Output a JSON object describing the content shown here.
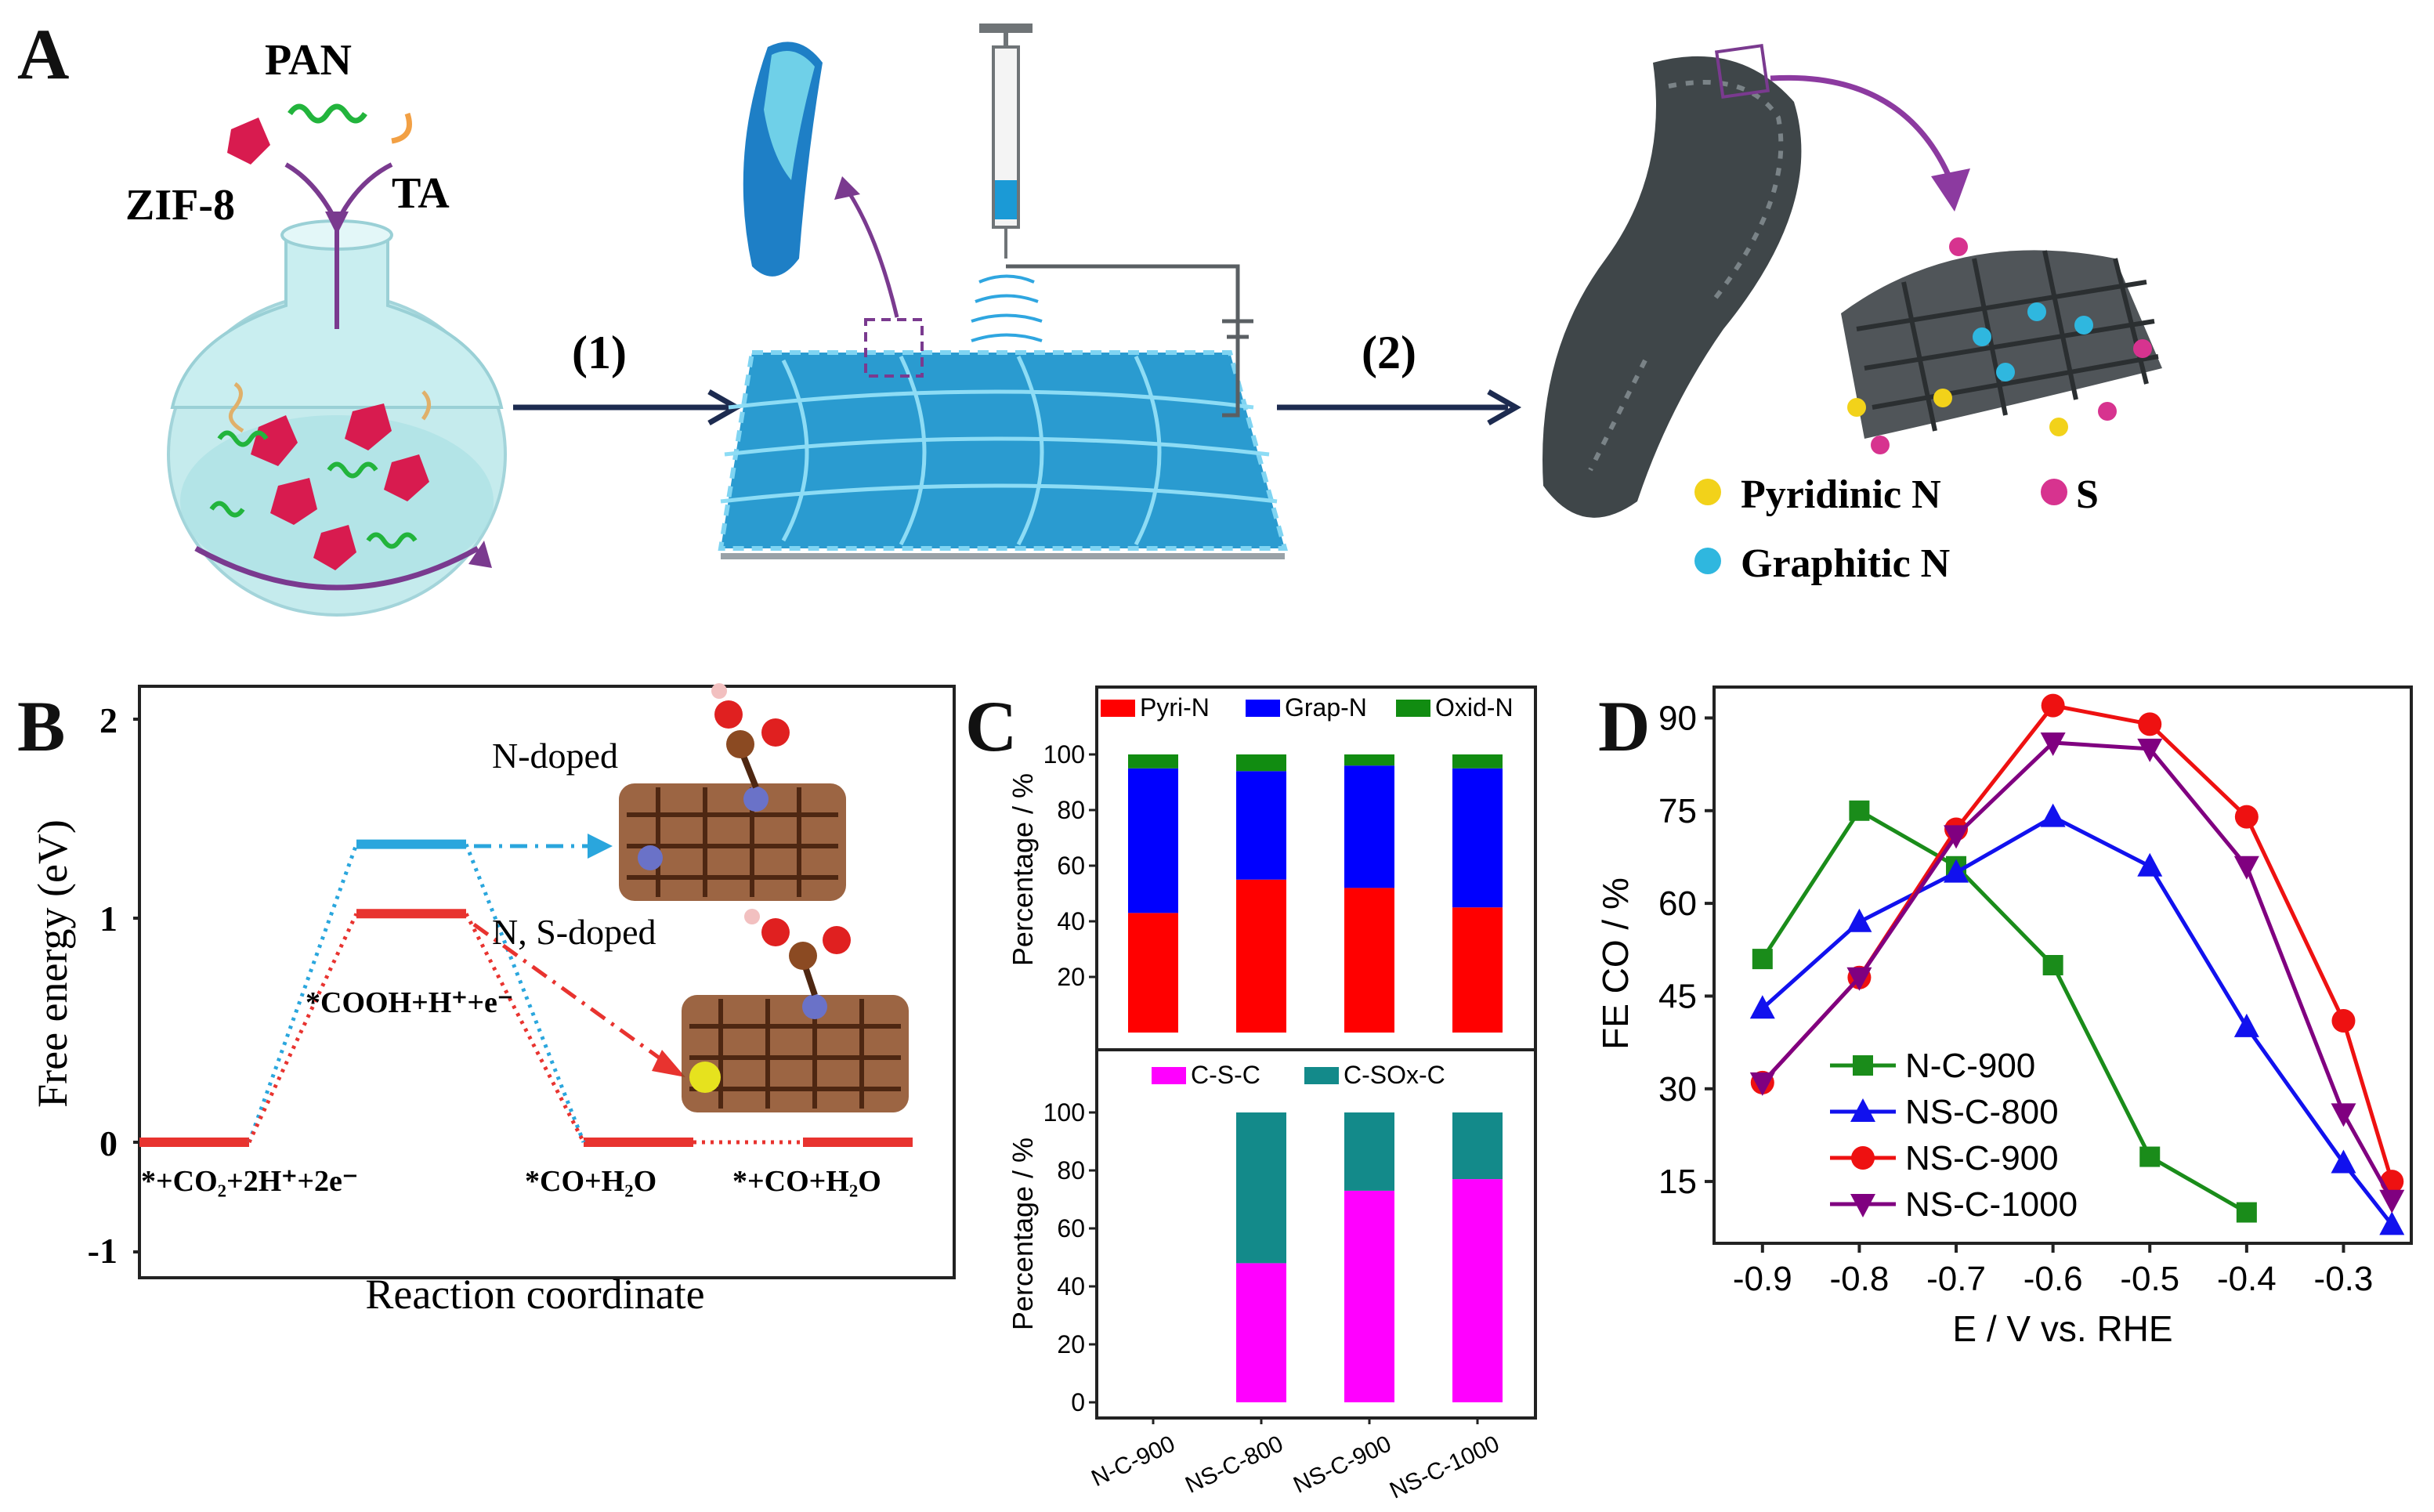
{
  "panel_a": {
    "letter": "A",
    "labels": {
      "pan": "PAN",
      "zif8": "ZIF-8",
      "ta": "TA",
      "step1": "(1)",
      "step2": "(2)"
    },
    "legend": [
      {
        "label": "Pyridinic N",
        "color": "#f2d21a"
      },
      {
        "label": "S",
        "color": "#d7338f"
      },
      {
        "label": "Graphitic N",
        "color": "#2fb7df"
      }
    ]
  },
  "panel_b": {
    "letter": "B",
    "ylabel": "Free energy (eV)",
    "xlabel": "Reaction coordinate",
    "yticks": [
      "2",
      "1",
      "0",
      "-1"
    ],
    "states": {
      "s1": "*+CO₂+2H⁺+2e⁻",
      "s2": "*COOH+H⁺+e⁻",
      "s3": "*CO+H₂O",
      "s4": "*+CO+H₂O"
    },
    "structure_labels": {
      "n_doped": "N-doped",
      "ns_doped": "N, S-doped"
    },
    "levels": {
      "n_doped_cooh": 1.33,
      "ns_doped_cooh": 1.02,
      "initial": 0,
      "final": 0
    },
    "colors": {
      "n_doped": "#2aa6dd",
      "ns_doped": "#e8332f"
    }
  },
  "panel_c": {
    "letter": "C",
    "categories": [
      "N-C-900",
      "NS-C-800",
      "NS-C-900",
      "NS-C-1000"
    ],
    "top": {
      "ylabel": "Percentage / %",
      "yticks": [
        "100",
        "80",
        "60",
        "40",
        "20"
      ],
      "legend": [
        {
          "label": "Pyri-N",
          "color": "#ff0000"
        },
        {
          "label": "Grap-N",
          "color": "#0000ff"
        },
        {
          "label": "Oxid-N",
          "color": "#118c11"
        }
      ]
    },
    "bottom": {
      "ylabel": "Percentage / %",
      "yticks": [
        "100",
        "80",
        "60",
        "40",
        "20",
        "0"
      ],
      "legend": [
        {
          "label": "C-S-C",
          "color": "#ff00ff"
        },
        {
          "label": "C-SOx-C",
          "color": "#138a8a"
        }
      ]
    }
  },
  "panel_d": {
    "letter": "D",
    "ylabel": "FE CO / %",
    "xlabel": "E / V vs. RHE",
    "xticks": [
      "-0.9",
      "-0.8",
      "-0.7",
      "-0.6",
      "-0.5",
      "-0.4",
      "-0.3"
    ],
    "yticks": [
      "15",
      "30",
      "45",
      "60",
      "75",
      "90"
    ]
  },
  "chart_data": [
    {
      "type": "bar",
      "stacked": true,
      "panel": "C-top",
      "categories": [
        "N-C-900",
        "NS-C-800",
        "NS-C-900",
        "NS-C-1000"
      ],
      "ylabel": "Percentage / %",
      "ylim": [
        0,
        110
      ],
      "series": [
        {
          "name": "Pyri-N",
          "color": "#ff0000",
          "values": [
            43,
            55,
            52,
            45
          ]
        },
        {
          "name": "Grap-N",
          "color": "#0000ff",
          "values": [
            52,
            39,
            44,
            50
          ]
        },
        {
          "name": "Oxid-N",
          "color": "#118c11",
          "values": [
            5,
            6,
            4,
            5
          ]
        }
      ]
    },
    {
      "type": "bar",
      "stacked": true,
      "panel": "C-bottom",
      "categories": [
        "N-C-900",
        "NS-C-800",
        "NS-C-900",
        "NS-C-1000"
      ],
      "ylabel": "Percentage / %",
      "ylim": [
        0,
        110
      ],
      "series": [
        {
          "name": "C-S-C",
          "color": "#ff00ff",
          "values": [
            0,
            48,
            73,
            77
          ]
        },
        {
          "name": "C-SOx-C",
          "color": "#138a8a",
          "values": [
            0,
            52,
            27,
            23
          ]
        }
      ]
    },
    {
      "type": "line",
      "panel": "D",
      "xlabel": "E / V vs. RHE",
      "ylabel": "FE CO / %",
      "xlim": [
        -0.95,
        -0.23
      ],
      "ylim": [
        5,
        95
      ],
      "legend_position": "bottom-left",
      "series": [
        {
          "name": "N-C-900",
          "color": "#1a8c1a",
          "marker": "square",
          "x": [
            -0.9,
            -0.8,
            -0.7,
            -0.6,
            -0.5,
            -0.4
          ],
          "y": [
            51,
            75,
            66,
            50,
            19,
            10
          ]
        },
        {
          "name": "NS-C-800",
          "color": "#1111ee",
          "marker": "triangle-up",
          "x": [
            -0.9,
            -0.8,
            -0.7,
            -0.6,
            -0.5,
            -0.4,
            -0.3,
            -0.25
          ],
          "y": [
            43,
            57,
            65,
            74,
            66,
            40,
            18,
            8
          ]
        },
        {
          "name": "NS-C-900",
          "color": "#ee1111",
          "marker": "circle",
          "x": [
            -0.9,
            -0.8,
            -0.7,
            -0.6,
            -0.5,
            -0.4,
            -0.3,
            -0.25
          ],
          "y": [
            31,
            48,
            72,
            92,
            89,
            74,
            41,
            15
          ]
        },
        {
          "name": "NS-C-1000",
          "color": "#800080",
          "marker": "triangle-down",
          "x": [
            -0.9,
            -0.8,
            -0.7,
            -0.6,
            -0.5,
            -0.4,
            -0.3,
            -0.25
          ],
          "y": [
            31,
            48,
            71,
            86,
            85,
            66,
            26,
            12
          ]
        }
      ]
    }
  ]
}
